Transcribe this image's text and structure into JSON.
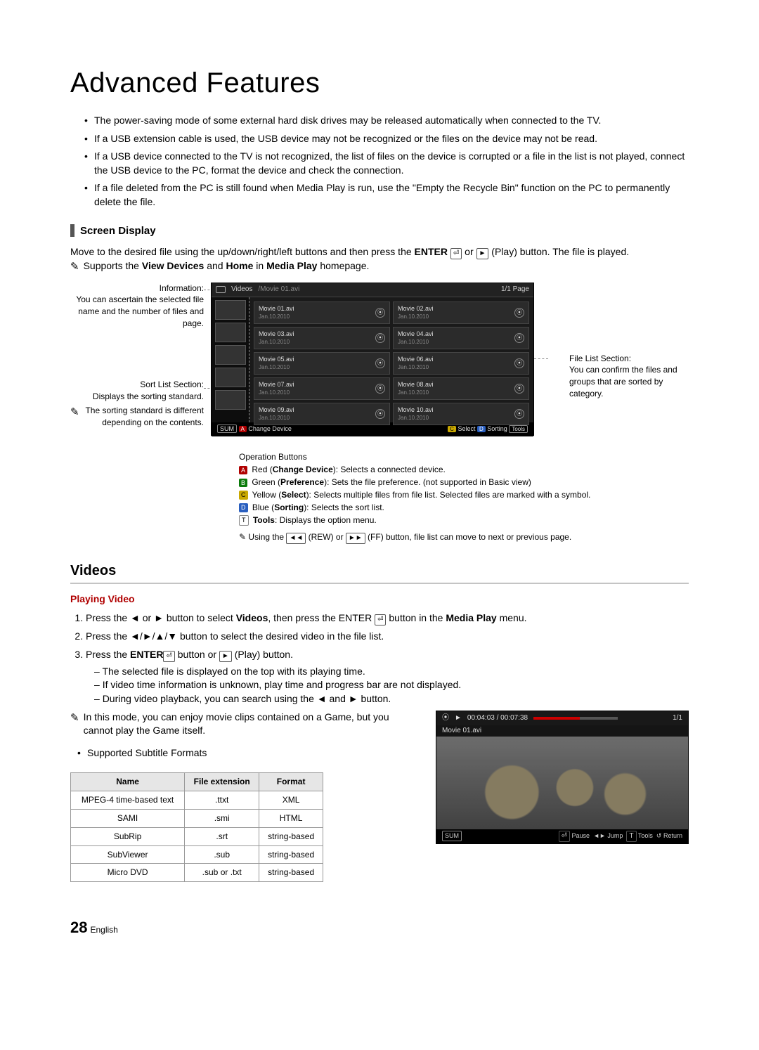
{
  "page_title": "Advanced Features",
  "intro_bullets": [
    "The power-saving mode of some external hard disk drives may be released automatically when connected to the TV.",
    "If a USB extension cable is used, the USB device may not be recognized or the files on the device may not be read.",
    "If a USB device connected to the TV is not recognized, the list of files on the device is corrupted or a file in the list is not played, connect the USB device to the PC, format the device and check the connection.",
    "If a file deleted from the PC is still found when Media Play is run, use the \"Empty the Recycle Bin\" function on the PC to permanently delete the file."
  ],
  "screen_display": {
    "heading": "Screen Display",
    "intro_pre": "Move to the desired file using the up/down/right/left buttons and then press the ",
    "enter_label": "ENTER",
    "or_text": " or ",
    "play_label": " (Play) button. The file is played.",
    "note_pre": "Supports the ",
    "bold1": "View Devices",
    "mid": " and ",
    "bold2": "Home",
    "in": " in ",
    "bold3": "Media Play",
    "tail": " homepage."
  },
  "callouts": {
    "info_label": "Information:",
    "info_body": "You can ascertain the selected file name and the number of files and page.",
    "sort_label": "Sort List Section:",
    "sort_body": "Displays the sorting standard.",
    "sort_note": "The sorting standard is different depending on the contents.",
    "filelist_label": "File List Section:",
    "filelist_body": "You can confirm the files and groups that are sorted by category."
  },
  "media_screen": {
    "category": "Videos",
    "path": "/Movie 01.avi",
    "page_label": "1/1 Page",
    "files": [
      {
        "name": "Movie 01.avi",
        "date": "Jan.10.2010"
      },
      {
        "name": "Movie 02.avi",
        "date": "Jan.10.2010"
      },
      {
        "name": "Movie 03.avi",
        "date": "Jan.10.2010"
      },
      {
        "name": "Movie 04.avi",
        "date": "Jan.10.2010"
      },
      {
        "name": "Movie 05.avi",
        "date": "Jan.10.2010"
      },
      {
        "name": "Movie 06.avi",
        "date": "Jan.10.2010"
      },
      {
        "name": "Movie 07.avi",
        "date": "Jan.10.2010"
      },
      {
        "name": "Movie 08.avi",
        "date": "Jan.10.2010"
      },
      {
        "name": "Movie 09.avi",
        "date": "Jan.10.2010"
      },
      {
        "name": "Movie 10.avi",
        "date": "Jan.10.2010"
      }
    ],
    "bottom_left": {
      "sum": "SUM",
      "a": "A",
      "a_label": "Change Device"
    },
    "bottom_right": {
      "c": "C",
      "c_label": "Select",
      "d": "D",
      "d_label": "Sorting",
      "tools": "Tools"
    }
  },
  "op_buttons": {
    "title": "Operation Buttons",
    "items": [
      {
        "tag": "A",
        "cls": "lblA",
        "bold": "Change Device",
        "text": "Red (",
        "tail": "): Selects a connected device."
      },
      {
        "tag": "B",
        "cls": "lblB",
        "bold": "Preference",
        "text": "Green (",
        "tail": "): Sets the file preference. (not supported in Basic view)"
      },
      {
        "tag": "C",
        "cls": "lblC",
        "bold": "Select",
        "text": "Yellow (",
        "tail": "): Selects multiple files from file list. Selected files are marked with a symbol."
      },
      {
        "tag": "D",
        "cls": "lblD",
        "bold": "Sorting",
        "text": "Blue (",
        "tail": "): Selects the sort list."
      }
    ],
    "tools_bold": "Tools",
    "tools_text": ": Displays the option menu.",
    "ff_note_pre": "Using the ",
    "rew": "◄◄",
    "rew_label": " (REW) or ",
    "ff": "►►",
    "ff_label": " (FF) button, file list can move to next or previous page."
  },
  "videos": {
    "heading": "Videos",
    "sub": "Playing Video",
    "steps": [
      {
        "pre": "Press the ◄ or ► button to select ",
        "bold": "Videos",
        "mid": ", then press the ENTER ",
        "icon": "⏎",
        "tail": " button in the ",
        "bold2": "Media Play",
        "tail2": " menu."
      },
      {
        "text": "Press the ◄/►/▲/▼ button to select the desired video in the file list."
      },
      {
        "pre": "Press the ",
        "bold": "ENTER",
        "icon": " ⏎",
        "mid": " button or ",
        "icon2": "►",
        "tail": " (Play) button.",
        "subs": [
          "The selected file is displayed on the top with its playing time.",
          "If video time information is unknown, play time and progress bar are not displayed.",
          "During video playback, you can search using the ◄ and ► button."
        ]
      }
    ],
    "note": "In this mode, you can enjoy movie clips contained on a Game, but you cannot play the Game itself.",
    "sup_label": "Supported Subtitle Formats"
  },
  "subtitle_table": {
    "columns": [
      "Name",
      "File extension",
      "Format"
    ],
    "rows": [
      [
        "MPEG-4 time-based text",
        ".ttxt",
        "XML"
      ],
      [
        "SAMI",
        ".smi",
        "HTML"
      ],
      [
        "SubRip",
        ".srt",
        "string-based"
      ],
      [
        "SubViewer",
        ".sub",
        "string-based"
      ],
      [
        "Micro DVD",
        ".sub or .txt",
        "string-based"
      ]
    ]
  },
  "player": {
    "time": "00:04:03 / 00:07:38",
    "page": "1/1",
    "file": "Movie 01.avi",
    "sum": "SUM",
    "pause": "Pause",
    "jump": "Jump",
    "tools": "Tools",
    "return": "Return"
  },
  "footer": {
    "num": "28",
    "lang": "English"
  }
}
